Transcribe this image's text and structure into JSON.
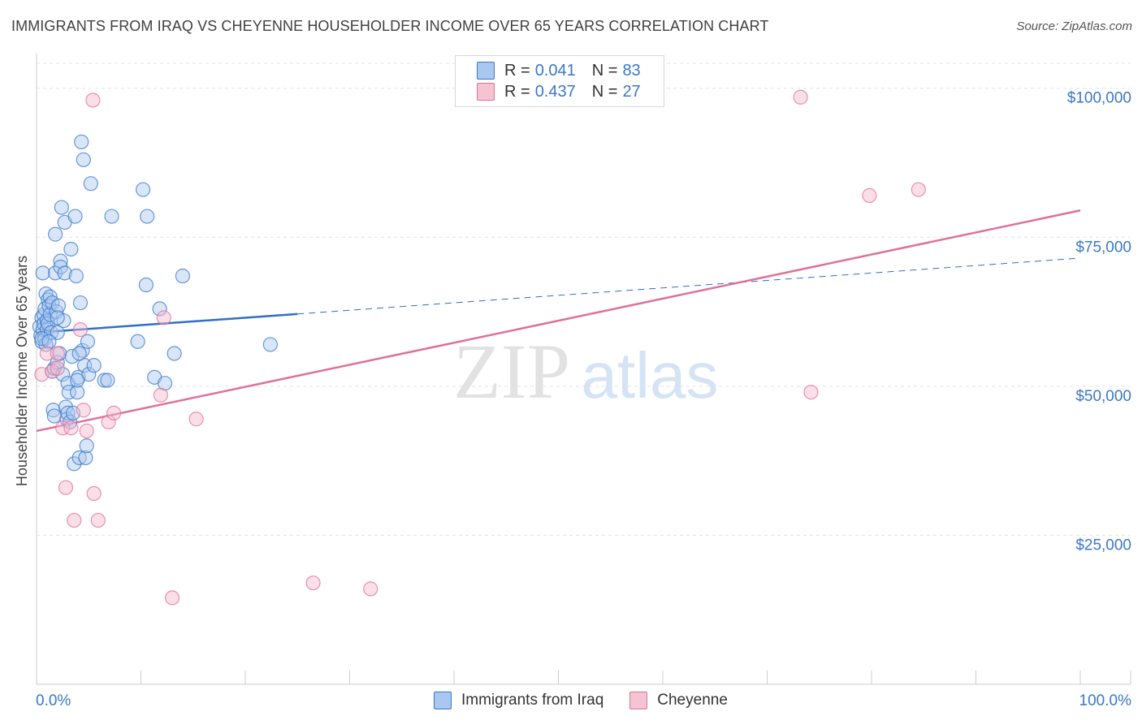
{
  "title": "IMMIGRANTS FROM IRAQ VS CHEYENNE HOUSEHOLDER INCOME OVER 65 YEARS CORRELATION CHART",
  "source": "Source: ZipAtlas.com",
  "watermark": {
    "zip": "ZIP",
    "atlas": "atlas"
  },
  "colors": {
    "blue": "#3a78c9",
    "blue_fill": "#aac8ef",
    "blue_line": "#2f6fca",
    "pink": "#e07098",
    "pink_fill": "#f5b8cb",
    "pink_line": "#e0709a",
    "grid": "#dfe3ea",
    "axis": "#cccccc",
    "tick_label": "#3a78c9"
  },
  "legend": {
    "rows": [
      {
        "r_label": "R =",
        "r_value": "0.041",
        "n_label": "N =",
        "n_value": "83"
      },
      {
        "r_label": "R =",
        "r_value": "0.437",
        "n_label": "N =",
        "n_value": "27"
      }
    ]
  },
  "chart_data": {
    "type": "scatter",
    "title": "IMMIGRANTS FROM IRAQ VS CHEYENNE HOUSEHOLDER INCOME OVER 65 YEARS CORRELATION CHART",
    "xlabel": "",
    "ylabel": "Householder Income Over 65 years",
    "xlim": [
      0,
      100
    ],
    "ylim": [
      0,
      105000
    ],
    "x_tick_labels": [
      "0.0%",
      "100.0%"
    ],
    "y_ticks": [
      25000,
      50000,
      75000,
      100000
    ],
    "y_tick_labels": [
      "$25,000",
      "$50,000",
      "$75,000",
      "$100,000"
    ],
    "grid": true,
    "legend_position": "bottom",
    "series": [
      {
        "name": "Immigrants from Iraq",
        "color": "blue",
        "trend": {
          "x0": 0,
          "y0": 59000,
          "x1": 100,
          "y1": 71500,
          "solid_until": 25
        },
        "points": [
          [
            0.3,
            60000
          ],
          [
            0.4,
            58500
          ],
          [
            0.5,
            61500
          ],
          [
            0.5,
            57500
          ],
          [
            0.6,
            69000
          ],
          [
            0.6,
            59500
          ],
          [
            0.7,
            62000
          ],
          [
            0.7,
            60500
          ],
          [
            0.8,
            63000
          ],
          [
            0.8,
            58000
          ],
          [
            0.9,
            65500
          ],
          [
            0.9,
            57000
          ],
          [
            1.0,
            61000
          ],
          [
            1.0,
            59500
          ],
          [
            1.1,
            64500
          ],
          [
            1.1,
            60500
          ],
          [
            1.2,
            63500
          ],
          [
            1.3,
            65000
          ],
          [
            1.3,
            62000
          ],
          [
            1.4,
            59000
          ],
          [
            1.5,
            64000
          ],
          [
            1.5,
            52500
          ],
          [
            1.6,
            46000
          ],
          [
            1.7,
            45000
          ],
          [
            1.7,
            53000
          ],
          [
            1.8,
            69000
          ],
          [
            1.8,
            75500
          ],
          [
            1.9,
            62500
          ],
          [
            2.0,
            59000
          ],
          [
            2.0,
            54000
          ],
          [
            2.1,
            63500
          ],
          [
            2.2,
            55500
          ],
          [
            2.3,
            71000
          ],
          [
            2.3,
            70000
          ],
          [
            2.4,
            80000
          ],
          [
            2.5,
            52000
          ],
          [
            2.6,
            61000
          ],
          [
            2.7,
            69000
          ],
          [
            2.7,
            77500
          ],
          [
            2.8,
            46500
          ],
          [
            2.9,
            44500
          ],
          [
            3.0,
            45500
          ],
          [
            3.0,
            50500
          ],
          [
            3.1,
            49000
          ],
          [
            3.2,
            44000
          ],
          [
            3.3,
            73000
          ],
          [
            3.4,
            55000
          ],
          [
            3.5,
            45500
          ],
          [
            3.6,
            37000
          ],
          [
            3.7,
            78500
          ],
          [
            3.8,
            68500
          ],
          [
            3.9,
            49000
          ],
          [
            4.0,
            51500
          ],
          [
            4.1,
            38000
          ],
          [
            4.2,
            64000
          ],
          [
            4.3,
            91000
          ],
          [
            4.4,
            56000
          ],
          [
            4.5,
            88000
          ],
          [
            4.6,
            53500
          ],
          [
            4.7,
            38000
          ],
          [
            4.8,
            40000
          ],
          [
            4.9,
            57500
          ],
          [
            5.0,
            52000
          ],
          [
            5.2,
            84000
          ],
          [
            5.5,
            53500
          ],
          [
            6.5,
            51000
          ],
          [
            6.8,
            51000
          ],
          [
            7.2,
            78500
          ],
          [
            9.7,
            57500
          ],
          [
            10.2,
            83000
          ],
          [
            10.5,
            67000
          ],
          [
            10.6,
            78500
          ],
          [
            11.3,
            51500
          ],
          [
            11.8,
            63000
          ],
          [
            12.3,
            50500
          ],
          [
            13.2,
            55500
          ],
          [
            14.0,
            68500
          ],
          [
            22.4,
            57000
          ],
          [
            0.5,
            58000
          ],
          [
            1.2,
            57500
          ],
          [
            2.0,
            61500
          ],
          [
            3.9,
            51000
          ],
          [
            4.1,
            55500
          ]
        ]
      },
      {
        "name": "Cheyenne",
        "color": "pink",
        "trend": {
          "x0": 0,
          "y0": 42500,
          "x1": 100,
          "y1": 79500
        },
        "points": [
          [
            0.5,
            52000
          ],
          [
            1.0,
            55500
          ],
          [
            1.5,
            52500
          ],
          [
            2.0,
            55500
          ],
          [
            2.5,
            43000
          ],
          [
            2.8,
            33000
          ],
          [
            3.3,
            43000
          ],
          [
            3.6,
            27500
          ],
          [
            4.2,
            59500
          ],
          [
            4.5,
            46000
          ],
          [
            4.8,
            42500
          ],
          [
            5.5,
            32000
          ],
          [
            5.9,
            27500
          ],
          [
            6.9,
            44000
          ],
          [
            7.4,
            45500
          ],
          [
            11.9,
            48500
          ],
          [
            12.2,
            61500
          ],
          [
            13.0,
            14500
          ],
          [
            15.3,
            44500
          ],
          [
            26.5,
            17000
          ],
          [
            32.0,
            16000
          ],
          [
            73.2,
            98500
          ],
          [
            74.2,
            49000
          ],
          [
            79.8,
            82000
          ],
          [
            84.5,
            83000
          ],
          [
            5.4,
            98000
          ],
          [
            2.0,
            53000
          ]
        ]
      }
    ]
  }
}
